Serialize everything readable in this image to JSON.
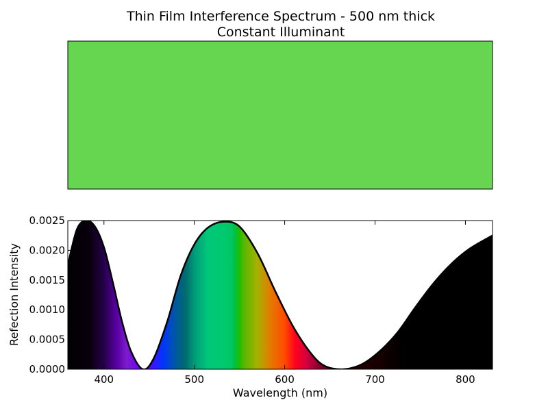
{
  "chart_data": {
    "type": "area",
    "title_line1": "Thin Film Interference Spectrum - 500 nm thick",
    "title_line2": "Constant Illuminant",
    "swatch_color": "#66d650",
    "xlabel": "Wavelength (nm)",
    "ylabel": "Refection Intensity",
    "xlim": [
      360,
      830
    ],
    "ylim": [
      0,
      0.0025
    ],
    "xticks": [
      400,
      500,
      600,
      700,
      800
    ],
    "xtick_labels": [
      "400",
      "500",
      "600",
      "700",
      "800"
    ],
    "yticks": [
      0,
      0.0005,
      0.001,
      0.0015,
      0.002,
      0.0025
    ],
    "ytick_labels": [
      "0.0000",
      "0.0005",
      "0.0010",
      "0.0015",
      "0.0020",
      "0.0025"
    ],
    "curve": {
      "x": [
        360,
        370,
        380,
        390,
        400,
        410,
        420,
        430,
        443,
        455,
        470,
        485,
        500,
        515,
        532,
        550,
        570,
        590,
        610,
        630,
        645,
        665,
        685,
        705,
        725,
        745,
        765,
        785,
        805,
        830
      ],
      "y": [
        0.00175,
        0.00235,
        0.0025,
        0.0024,
        0.00205,
        0.00145,
        0.0008,
        0.0003,
        0.0,
        0.00018,
        0.0008,
        0.00158,
        0.0021,
        0.00238,
        0.00248,
        0.0024,
        0.00195,
        0.0013,
        0.0007,
        0.00025,
        5e-05,
        0.0,
        8e-05,
        0.0003,
        0.00062,
        0.00105,
        0.00145,
        0.00178,
        0.00203,
        0.00225
      ]
    },
    "fill_gradient": [
      {
        "x": 360,
        "color": "#000000"
      },
      {
        "x": 385,
        "color": "#0a0010"
      },
      {
        "x": 400,
        "color": "#25004a"
      },
      {
        "x": 415,
        "color": "#5d00a8"
      },
      {
        "x": 425,
        "color": "#7c1ccb"
      },
      {
        "x": 440,
        "color": "#6f00ff"
      },
      {
        "x": 455,
        "color": "#3a14ff"
      },
      {
        "x": 465,
        "color": "#0035ff"
      },
      {
        "x": 480,
        "color": "#005a9a"
      },
      {
        "x": 490,
        "color": "#006a6e"
      },
      {
        "x": 500,
        "color": "#009a78"
      },
      {
        "x": 515,
        "color": "#00c87a"
      },
      {
        "x": 540,
        "color": "#00c868"
      },
      {
        "x": 545,
        "color": "#00c040"
      },
      {
        "x": 550,
        "color": "#1fbd00"
      },
      {
        "x": 555,
        "color": "#5ab700"
      },
      {
        "x": 570,
        "color": "#a8b000"
      },
      {
        "x": 585,
        "color": "#e67800"
      },
      {
        "x": 600,
        "color": "#ff4a00"
      },
      {
        "x": 612,
        "color": "#ff0020"
      },
      {
        "x": 625,
        "color": "#d00040"
      },
      {
        "x": 640,
        "color": "#7a0028"
      },
      {
        "x": 665,
        "color": "#2a0008"
      },
      {
        "x": 700,
        "color": "#1a0000"
      },
      {
        "x": 730,
        "color": "#000000"
      },
      {
        "x": 830,
        "color": "#000000"
      }
    ]
  }
}
